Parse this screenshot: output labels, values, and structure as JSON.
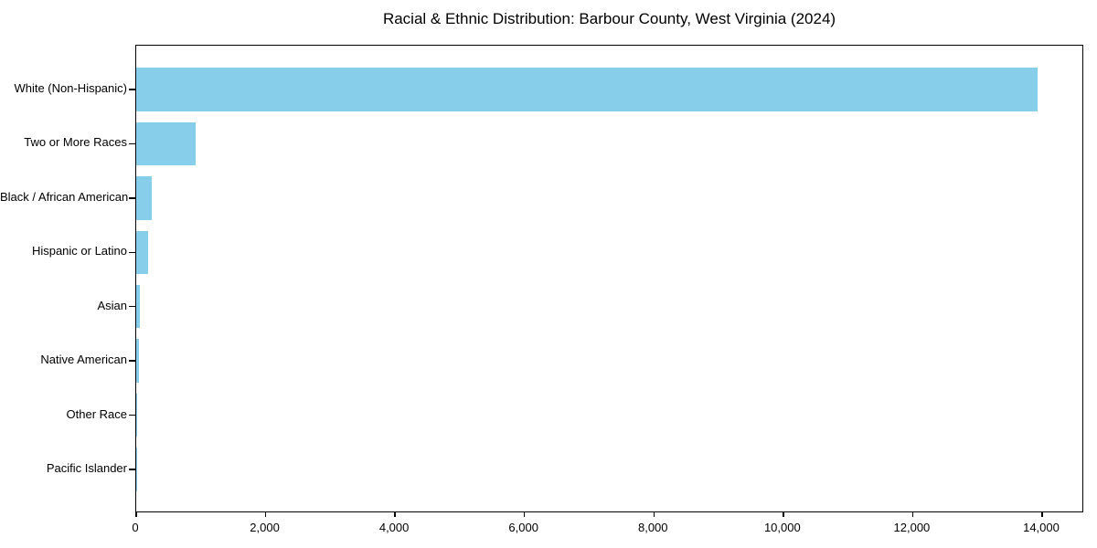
{
  "chart_data": {
    "type": "bar",
    "orientation": "horizontal",
    "title": "Racial & Ethnic Distribution: Barbour County, West Virginia (2024)",
    "categories": [
      "White (Non-Hispanic)",
      "Two or More Races",
      "Black / African American",
      "Hispanic or Latino",
      "Asian",
      "Native American",
      "Other Race",
      "Pacific Islander"
    ],
    "values": [
      13960,
      925,
      235,
      190,
      50,
      40,
      12,
      2
    ],
    "bar_color": "#87CEEB",
    "axis_color": "#000000",
    "background_color": "#ffffff",
    "xlim": [
      0,
      14650
    ],
    "x_ticks": [
      0,
      2000,
      4000,
      6000,
      8000,
      10000,
      12000,
      14000
    ],
    "x_tick_labels": [
      "0",
      "2,000",
      "4,000",
      "6,000",
      "8,000",
      "10,000",
      "12,000",
      "14,000"
    ],
    "xlabel": "",
    "ylabel": "",
    "grid": false,
    "legend": false
  }
}
